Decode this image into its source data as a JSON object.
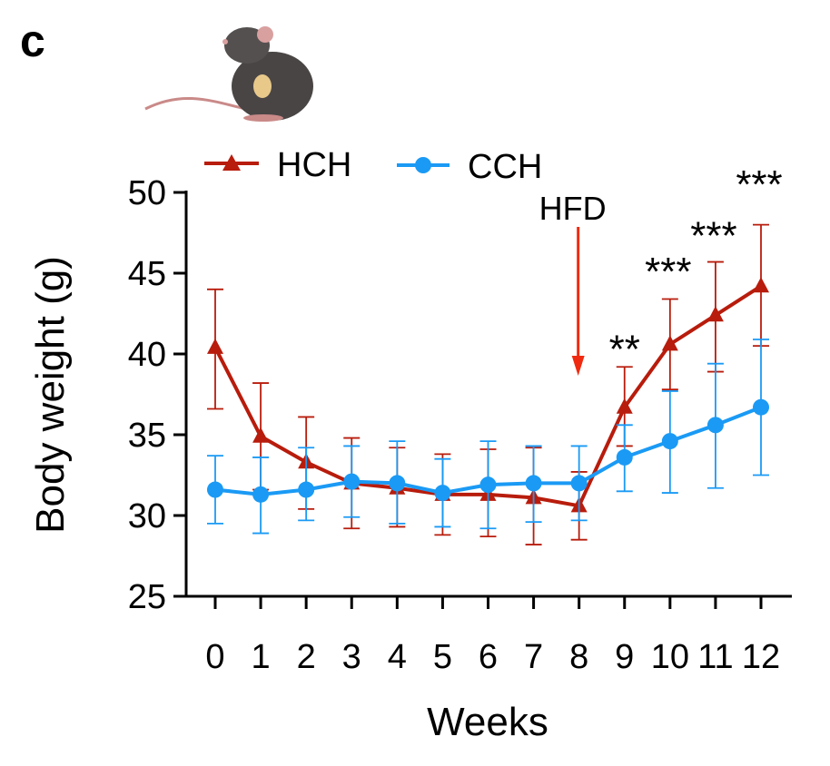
{
  "panel_label": "c",
  "chart_data": {
    "type": "line",
    "title": "",
    "xlabel": "Weeks",
    "ylabel": "Body weight (g)",
    "ylim": [
      25,
      50
    ],
    "yticks": [
      25,
      30,
      35,
      40,
      45,
      50
    ],
    "x": [
      0,
      1,
      2,
      3,
      4,
      5,
      6,
      7,
      8,
      9,
      10,
      11,
      12
    ],
    "xtick_labels": [
      "0",
      "1",
      "2",
      "3",
      "4",
      "5",
      "6",
      "7",
      "8",
      "9",
      "10",
      "11",
      "12"
    ],
    "legend_placement": "top",
    "series": [
      {
        "name": "HCH",
        "color": "#b81c0c",
        "marker": "triangle",
        "values": [
          40.4,
          34.9,
          33.3,
          32.0,
          31.7,
          31.3,
          31.3,
          31.1,
          30.6,
          36.7,
          40.6,
          42.4,
          44.2
        ],
        "err_upper": [
          44.0,
          38.2,
          36.1,
          34.8,
          34.2,
          33.8,
          34.1,
          34.2,
          32.7,
          39.2,
          43.4,
          45.7,
          48.0
        ],
        "err_lower": [
          36.6,
          31.6,
          30.4,
          29.2,
          29.3,
          28.8,
          28.7,
          28.2,
          28.5,
          34.3,
          37.8,
          38.9,
          40.5
        ]
      },
      {
        "name": "CCH",
        "color": "#1a9af5",
        "marker": "circle",
        "values": [
          31.6,
          31.3,
          31.6,
          32.1,
          32.0,
          31.4,
          31.9,
          32.0,
          32.0,
          33.6,
          34.6,
          35.6,
          36.7
        ],
        "err_upper": [
          33.7,
          33.6,
          34.2,
          34.3,
          34.6,
          33.5,
          34.6,
          34.3,
          34.3,
          35.6,
          37.7,
          39.4,
          40.9
        ],
        "err_lower": [
          29.5,
          28.9,
          29.7,
          29.9,
          29.5,
          29.3,
          29.2,
          29.6,
          29.7,
          31.5,
          31.4,
          31.7,
          32.5
        ]
      }
    ],
    "annotations": [
      {
        "text": "HFD",
        "x": 8,
        "type": "arrow",
        "color": "#f02a10"
      },
      {
        "text": "**",
        "x": 9,
        "y": 40.6
      },
      {
        "text": "***",
        "x": 10,
        "y": 45.4
      },
      {
        "text": "***",
        "x": 11,
        "y": 47.6
      },
      {
        "text": "***",
        "x": 12,
        "y": 50.8
      }
    ]
  }
}
